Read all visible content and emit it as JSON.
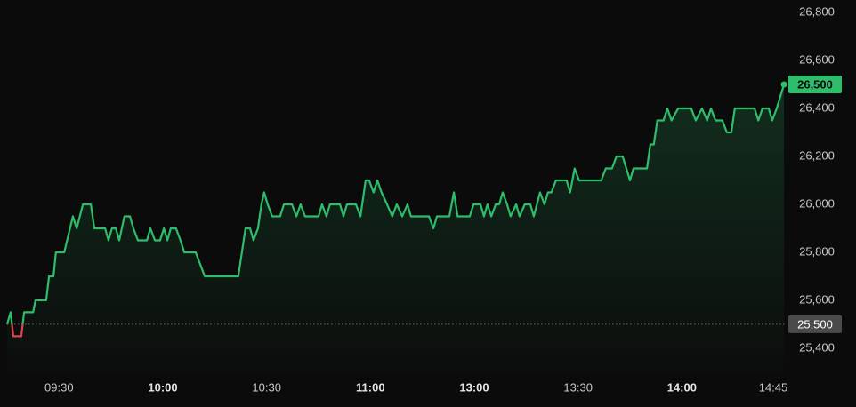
{
  "chart_data": {
    "type": "line",
    "x": [
      0,
      1.0,
      1.8,
      4.1,
      4.9,
      7.5,
      8.2,
      11.3,
      12.1,
      13.4,
      14.1,
      16.5,
      19.0,
      20.1,
      21.9,
      24.2,
      25.2,
      28.3,
      29.3,
      30.3,
      31.4,
      32.4,
      33.9,
      35.5,
      36.5,
      37.8,
      40.4,
      41.4,
      42.7,
      44.2,
      45.3,
      46.3,
      47.3,
      48.8,
      50.1,
      51.2,
      54.5,
      57.1,
      66.8,
      68.9,
      70.2,
      71.2,
      72.5,
      73.5,
      74.3,
      75.3,
      76.6,
      78.9,
      80.0,
      82.3,
      83.6,
      84.8,
      86.1,
      90.0,
      91.0,
      92.3,
      93.3,
      96.2,
      97.2,
      98.2,
      100.8,
      102.1,
      103.6,
      104.6,
      105.9,
      107.0,
      108.2,
      109.8,
      111.3,
      112.6,
      114.2,
      115.7,
      116.7,
      118.5,
      121.9,
      123.2,
      124.2,
      127.8,
      129.1,
      130.2,
      133.7,
      134.8,
      136.8,
      137.8,
      138.8,
      139.9,
      141.2,
      142.2,
      143.2,
      144.5,
      145.5,
      147.1,
      148.1,
      149.6,
      151.2,
      152.2,
      154.0,
      155.3,
      156.3,
      157.3,
      158.6,
      161.7,
      162.7,
      164.0,
      165.3,
      171.7,
      173.0,
      174.8,
      176.1,
      177.9,
      180.0,
      181.0,
      184.9,
      185.9,
      186.9,
      187.9,
      189.7,
      190.8,
      192.0,
      193.9,
      197.7,
      199.0,
      200.8,
      202.3,
      203.4,
      204.7,
      206.7,
      208.0,
      209.3,
      210.3,
      216.0,
      217.1,
      218.3,
      220.1,
      221.1,
      222.4,
      224.5
    ],
    "values": [
      25500,
      25550,
      25450,
      25450,
      25550,
      25550,
      25600,
      25600,
      25700,
      25700,
      25800,
      25800,
      25950,
      25900,
      26000,
      26000,
      25900,
      25900,
      25850,
      25900,
      25900,
      25850,
      25950,
      25950,
      25900,
      25850,
      25850,
      25900,
      25850,
      25850,
      25900,
      25850,
      25900,
      25900,
      25850,
      25800,
      25800,
      25700,
      25700,
      25900,
      25900,
      25850,
      25900,
      26000,
      26050,
      26000,
      25950,
      25950,
      26000,
      26000,
      25950,
      26000,
      25950,
      25950,
      26000,
      25950,
      26000,
      26000,
      25950,
      26000,
      26000,
      25950,
      26100,
      26100,
      26050,
      26100,
      26050,
      26000,
      25950,
      26000,
      25950,
      26000,
      25950,
      25950,
      25950,
      25900,
      25950,
      25950,
      26050,
      25950,
      25950,
      26000,
      26000,
      25950,
      26000,
      25950,
      26000,
      26000,
      26050,
      26000,
      25950,
      26000,
      25950,
      26000,
      26000,
      25950,
      26050,
      26000,
      26050,
      26050,
      26100,
      26100,
      26050,
      26150,
      26100,
      26100,
      26150,
      26150,
      26200,
      26200,
      26100,
      26150,
      26150,
      26250,
      26250,
      26350,
      26350,
      26400,
      26350,
      26400,
      26400,
      26350,
      26400,
      26350,
      26400,
      26350,
      26350,
      26300,
      26300,
      26400,
      26400,
      26350,
      26400,
      26400,
      26350,
      26400,
      26500
    ],
    "color": "#2ebd6b",
    "below_color": "#e0434b",
    "xlim": [
      0,
      225
    ],
    "xticks": [
      {
        "value": 15,
        "label": "09:30"
      },
      {
        "value": 45,
        "label": "10:00",
        "bold": true
      },
      {
        "value": 75,
        "label": "10:30"
      },
      {
        "value": 105,
        "label": "11:00",
        "bold": true
      },
      {
        "value": 135,
        "label": "13:00",
        "bold": true
      },
      {
        "value": 165,
        "label": "13:30"
      },
      {
        "value": 195,
        "label": "14:00",
        "bold": true
      },
      {
        "value": 221.4,
        "label": "14:45"
      }
    ],
    "ylim": [
      25296,
      26852
    ],
    "yticks": [
      {
        "value": 25400,
        "label": "25,400"
      },
      {
        "value": 25600,
        "label": "25,600"
      },
      {
        "value": 25800,
        "label": "25,800"
      },
      {
        "value": 26000,
        "label": "26,000"
      },
      {
        "value": 26200,
        "label": "26,200"
      },
      {
        "value": 26400,
        "label": "26,400"
      },
      {
        "value": 26600,
        "label": "26,600"
      },
      {
        "value": 26800,
        "label": "26,800"
      }
    ],
    "baseline": {
      "value": 25500,
      "label": "25,500"
    },
    "last_price": {
      "value": 26500,
      "label": "26,500"
    }
  }
}
